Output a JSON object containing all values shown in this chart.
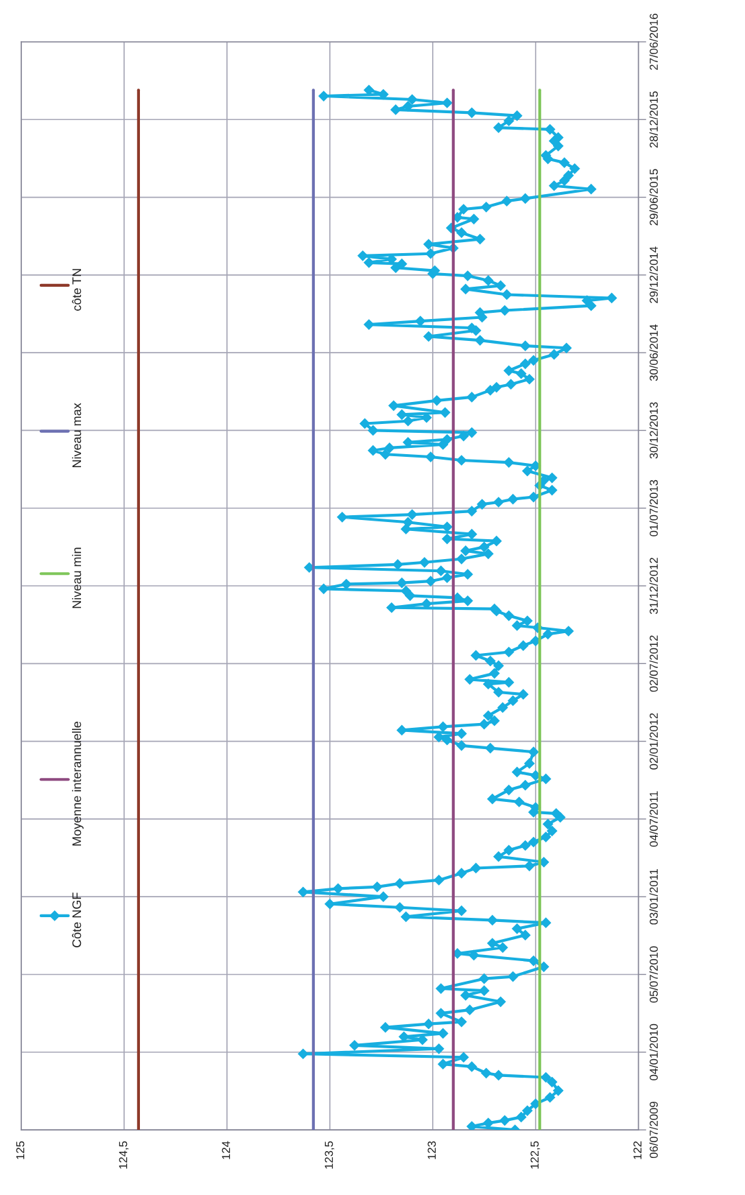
{
  "chart_data": {
    "type": "line",
    "orientation": "horizontal",
    "xlim": [
      125,
      122
    ],
    "xticks": [
      125,
      {
        "value": 124.5,
        "label": "124,5"
      },
      124,
      {
        "value": 123.5,
        "label": "123,5"
      },
      123,
      {
        "value": 122.5,
        "label": "122,5"
      },
      122
    ],
    "ylim": [
      "2009-07-06",
      "2016-06-27"
    ],
    "yticks": [
      {
        "value": "2009-07-06",
        "label": "06/07/2009"
      },
      {
        "value": "2010-01-04",
        "label": "04/01/2010"
      },
      {
        "value": "2010-07-05",
        "label": "05/07/2010"
      },
      {
        "value": "2011-01-03",
        "label": "03/01/2011"
      },
      {
        "value": "2011-07-04",
        "label": "04/07/2011"
      },
      {
        "value": "2012-01-02",
        "label": "02/01/2012"
      },
      {
        "value": "2012-07-02",
        "label": "02/07/2012"
      },
      {
        "value": "2012-12-31",
        "label": "31/12/2012"
      },
      {
        "value": "2013-07-01",
        "label": "01/07/2013"
      },
      {
        "value": "2013-12-30",
        "label": "30/12/2013"
      },
      {
        "value": "2014-06-30",
        "label": "30/06/2014"
      },
      {
        "value": "2014-12-29",
        "label": "29/12/2014"
      },
      {
        "value": "2015-06-29",
        "label": "29/06/2015"
      },
      {
        "value": "2015-12-28",
        "label": "28/12/2015"
      },
      {
        "value": "2016-06-27",
        "label": "27/06/2016"
      }
    ],
    "grid": true,
    "legend": "left",
    "series": [
      {
        "name": "Côte NGF",
        "color": "#17aee0",
        "marker": "diamond",
        "x": [
          "2009-07-06",
          "2009-07-14",
          "2009-07-22",
          "2009-07-28",
          "2009-08-05",
          "2009-08-20",
          "2009-09-05",
          "2009-09-20",
          "2009-10-06",
          "2009-10-26",
          "2009-11-06",
          "2009-11-11",
          "2009-11-16",
          "2009-12-01",
          "2009-12-07",
          "2009-12-23",
          "2009-12-31",
          "2010-01-12",
          "2010-01-20",
          "2010-02-02",
          "2010-02-09",
          "2010-02-17",
          "2010-03-03",
          "2010-03-11",
          "2010-03-16",
          "2010-04-05",
          "2010-04-13",
          "2010-05-02",
          "2010-05-17",
          "2010-05-28",
          "2010-06-02",
          "2010-06-25",
          "2010-06-30",
          "2010-07-23",
          "2010-08-06",
          "2010-08-19",
          "2010-08-23",
          "2010-09-06",
          "2010-09-16",
          "2010-10-05",
          "2010-10-20",
          "2010-11-03",
          "2010-11-09",
          "2010-11-17",
          "2010-12-01",
          "2010-12-09",
          "2010-12-17",
          "2011-01-03",
          "2011-01-14",
          "2011-01-22",
          "2011-01-26",
          "2011-02-03",
          "2011-02-11",
          "2011-02-27",
          "2011-03-11",
          "2011-03-16",
          "2011-03-25",
          "2011-04-07",
          "2011-04-22",
          "2011-05-03",
          "2011-05-11",
          "2011-05-23",
          "2011-06-06",
          "2011-06-22",
          "2011-07-08",
          "2011-07-17",
          "2011-07-20",
          "2011-07-31",
          "2011-08-13",
          "2011-08-20",
          "2011-09-10",
          "2011-09-21",
          "2011-10-06",
          "2011-10-14",
          "2011-10-22",
          "2011-11-11",
          "2011-12-08",
          "2011-12-17",
          "2011-12-23",
          "2012-01-05",
          "2012-01-12",
          "2012-01-20",
          "2012-01-28",
          "2012-02-05",
          "2012-02-11",
          "2012-02-19",
          "2012-03-02",
          "2012-03-21",
          "2012-04-06",
          "2012-04-21",
          "2012-04-26",
          "2012-05-15",
          "2012-05-19",
          "2012-05-26",
          "2012-06-09",
          "2012-06-27",
          "2012-07-08",
          "2012-07-21",
          "2012-07-29",
          "2012-08-13",
          "2012-08-24",
          "2012-09-09",
          "2012-09-16",
          "2012-09-24",
          "2012-09-29",
          "2012-10-10",
          "2012-10-22",
          "2012-11-02",
          "2012-11-07",
          "2012-11-10",
          "2012-11-19",
          "2012-11-26",
          "2012-12-03",
          "2012-12-08",
          "2012-12-19",
          "2012-12-24",
          "2013-01-04",
          "2013-01-07",
          "2013-01-11",
          "2013-01-19",
          "2013-01-27",
          "2013-02-04",
          "2013-02-12",
          "2013-02-19",
          "2013-02-24",
          "2013-03-04",
          "2013-03-16",
          "2013-03-23",
          "2013-04-01",
          "2013-04-15",
          "2013-04-20",
          "2013-05-01",
          "2013-05-13",
          "2013-05-18",
          "2013-05-29",
          "2013-06-10",
          "2013-06-16",
          "2013-06-24",
          "2013-07-10",
          "2013-07-15",
          "2013-07-22",
          "2013-07-27",
          "2013-08-12",
          "2013-08-23",
          "2013-09-04",
          "2013-09-10",
          "2013-09-26",
          "2013-10-08",
          "2013-10-16",
          "2013-10-21",
          "2013-10-29",
          "2013-11-04",
          "2013-11-13",
          "2013-11-19",
          "2013-11-27",
          "2013-12-02",
          "2013-12-09",
          "2013-12-17",
          "2013-12-25",
          "2013-12-30",
          "2014-01-15",
          "2014-01-21",
          "2014-01-29",
          "2014-02-05",
          "2014-02-10",
          "2014-02-26",
          "2014-03-10",
          "2014-03-18",
          "2014-04-03",
          "2014-04-10",
          "2014-04-17",
          "2014-04-29",
          "2014-05-12",
          "2014-05-19",
          "2014-06-04",
          "2014-06-12",
          "2014-06-26",
          "2014-07-11",
          "2014-07-16",
          "2014-07-29",
          "2014-08-07",
          "2014-08-21",
          "2014-08-27",
          "2014-09-04",
          "2014-09-12",
          "2014-09-21",
          "2014-10-02",
          "2014-10-07",
          "2014-10-18",
          "2014-10-30",
          "2014-11-05",
          "2014-11-13",
          "2014-11-26",
          "2014-12-04",
          "2014-12-16",
          "2014-12-27",
          "2015-01-01",
          "2015-01-08",
          "2015-01-15",
          "2015-01-24",
          "2015-01-27",
          "2015-02-04",
          "2015-02-12",
          "2015-02-17",
          "2015-03-02",
          "2015-03-11",
          "2015-03-23",
          "2015-04-07",
          "2015-04-18",
          "2015-05-09",
          "2015-05-13",
          "2015-06-01",
          "2015-06-06",
          "2015-06-20",
          "2015-06-26",
          "2015-07-18",
          "2015-07-26",
          "2015-08-07",
          "2015-08-19",
          "2015-09-04",
          "2015-09-18",
          "2015-09-27",
          "2015-10-05",
          "2015-10-27",
          "2015-11-08",
          "2015-11-16",
          "2015-12-05",
          "2015-12-09",
          "2015-12-25",
          "2016-01-06",
          "2016-01-13",
          "2016-01-20",
          "2016-01-28",
          "2016-02-05",
          "2016-02-13",
          "2016-02-21",
          "2016-02-25",
          "2016-03-06"
        ],
        "values": [
          122.6,
          122.81,
          122.73,
          122.65,
          122.57,
          122.54,
          122.5,
          122.43,
          122.39,
          122.42,
          122.45,
          122.68,
          122.74,
          122.81,
          122.95,
          122.85,
          123.63,
          122.97,
          123.38,
          123.05,
          123.14,
          122.95,
          123.23,
          123.02,
          122.86,
          122.96,
          122.82,
          122.67,
          122.84,
          122.75,
          122.96,
          122.75,
          122.61,
          122.46,
          122.51,
          122.8,
          122.88,
          122.66,
          122.71,
          122.55,
          122.59,
          122.45,
          122.71,
          123.13,
          122.86,
          123.16,
          123.5,
          123.24,
          123.63,
          123.46,
          123.27,
          123.16,
          122.97,
          122.86,
          122.79,
          122.53,
          122.46,
          122.68,
          122.63,
          122.55,
          122.51,
          122.45,
          122.42,
          122.44,
          122.38,
          122.4,
          122.51,
          122.5,
          122.58,
          122.71,
          122.63,
          122.55,
          122.45,
          122.5,
          122.59,
          122.53,
          122.51,
          122.72,
          122.86,
          122.93,
          122.97,
          122.86,
          123.15,
          122.95,
          122.75,
          122.7,
          122.73,
          122.66,
          122.61,
          122.56,
          122.68,
          122.73,
          122.63,
          122.82,
          122.7,
          122.68,
          122.72,
          122.79,
          122.63,
          122.56,
          122.5,
          122.44,
          122.34,
          122.49,
          122.59,
          122.54,
          122.63,
          122.69,
          122.7,
          123.2,
          123.03,
          122.83,
          122.88,
          123.11,
          123.13,
          123.53,
          123.42,
          123.15,
          123.01,
          122.93,
          122.83,
          122.96,
          123.6,
          123.17,
          123.04,
          122.86,
          122.73,
          122.84,
          122.75,
          122.69,
          122.93,
          122.81,
          123.13,
          122.93,
          123.12,
          123.44,
          123.1,
          122.81,
          122.76,
          122.68,
          122.61,
          122.51,
          122.42,
          122.48,
          122.46,
          122.42,
          122.54,
          122.5,
          122.63,
          122.86,
          123.01,
          123.23,
          123.29,
          123.21,
          122.95,
          123.12,
          122.93,
          122.85,
          122.81,
          123.29,
          123.33,
          123.12,
          123.03,
          123.15,
          122.94,
          123.19,
          122.98,
          122.81,
          122.72,
          122.69,
          122.62,
          122.53,
          122.57,
          122.63,
          122.55,
          122.51,
          122.41,
          122.35,
          122.55,
          122.77,
          123.02,
          122.79,
          122.81,
          123.31,
          123.06,
          122.76,
          122.77,
          122.65,
          122.23,
          122.25,
          122.13,
          122.64,
          122.84,
          122.67,
          122.73,
          122.83,
          123.0,
          122.99,
          123.18,
          123.15,
          123.31,
          123.2,
          123.34,
          123.01,
          122.9,
          123.02,
          122.77,
          122.86,
          122.91,
          122.8,
          122.88,
          122.85,
          122.74,
          122.64,
          122.55,
          122.23,
          122.41,
          122.36,
          122.34,
          122.31,
          122.36,
          122.44,
          122.45,
          122.39,
          122.41,
          122.39,
          122.43,
          122.68,
          122.63,
          122.59,
          122.81,
          123.18,
          123.12,
          122.93,
          123.1,
          123.53,
          123.24,
          123.31
        ]
      },
      {
        "name": "Moyenne interannuelle",
        "color": "#8e4a80",
        "x": [
          "2009-07-06",
          "2016-03-06"
        ],
        "values": [
          122.9,
          122.9
        ]
      },
      {
        "name": "Niveau min",
        "color": "#7fc65a",
        "x": [
          "2009-07-06",
          "2016-03-06"
        ],
        "values": [
          122.48,
          122.48
        ]
      },
      {
        "name": "Niveau max",
        "color": "#6c70b2",
        "x": [
          "2009-07-06",
          "2016-03-06"
        ],
        "values": [
          123.58,
          123.58
        ]
      },
      {
        "name": "côte TN",
        "color": "#8e3a2a",
        "x": [
          "2009-07-06",
          "2016-03-06"
        ],
        "values": [
          124.43,
          124.43
        ]
      }
    ]
  }
}
